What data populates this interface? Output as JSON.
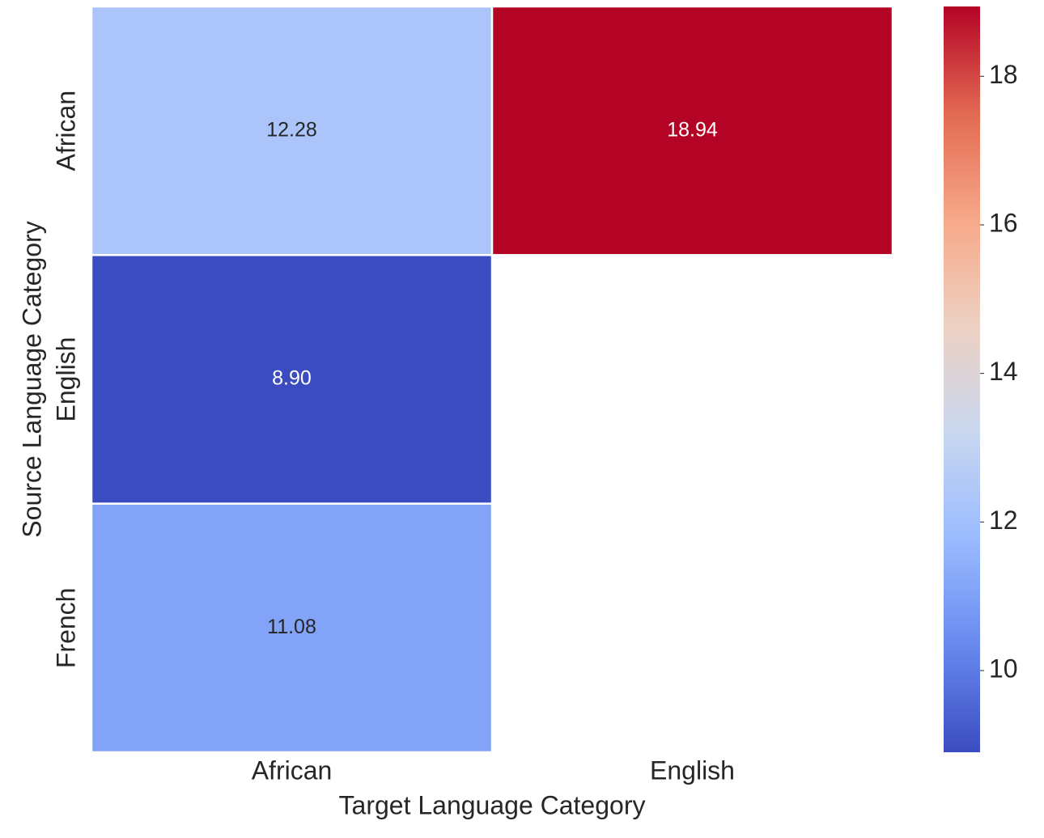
{
  "chart_data": {
    "type": "heatmap",
    "x_label": "Target Language Category",
    "y_label": "Source Language Category",
    "x_categories": [
      "African",
      "English"
    ],
    "y_categories": [
      "African",
      "English",
      "French"
    ],
    "values": [
      [
        12.28,
        18.94
      ],
      [
        8.9,
        null
      ],
      [
        11.08,
        null
      ]
    ],
    "value_labels": [
      [
        "12.28",
        "18.94"
      ],
      [
        "8.90",
        null
      ],
      [
        "11.08",
        null
      ]
    ],
    "colormap": [
      "#3b4cc0",
      "#6889ee",
      "#9abbff",
      "#c9d7f0",
      "#edd1c2",
      "#f7a889",
      "#e26952",
      "#b40426"
    ],
    "clim": [
      8.9,
      18.94
    ],
    "cticks": [
      10,
      12,
      14,
      16,
      18
    ]
  }
}
